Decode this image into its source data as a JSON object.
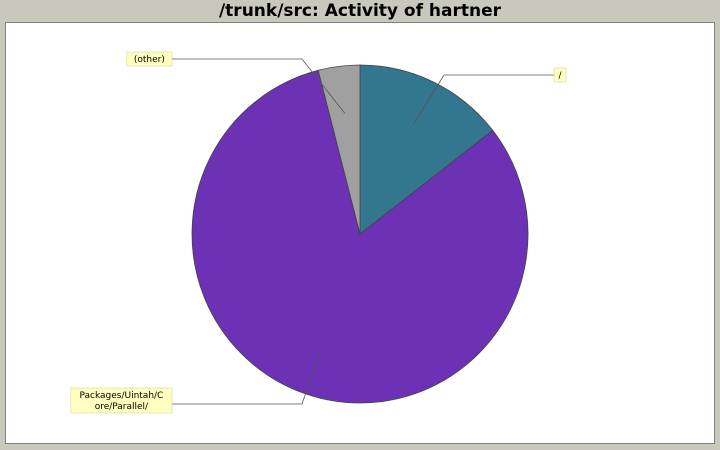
{
  "chart_data": {
    "type": "pie",
    "title": "/trunk/src: Activity of hartner",
    "slices": [
      {
        "label": "/",
        "value": 14.5,
        "color": "#33768f"
      },
      {
        "label": "Packages/Uintah/Core/Parallel/",
        "value": 81.5,
        "color": "#6c31b4"
      },
      {
        "label": "(other)",
        "value": 4.0,
        "color": "#a0a0a0"
      }
    ],
    "slice_label_lines": [
      [
        "/"
      ],
      [
        "Packages/Uintah/C",
        "ore/Parallel/"
      ],
      [
        "(other)"
      ]
    ],
    "start_angle_deg": 90,
    "direction": "clockwise",
    "legend": "none",
    "label_background": "#ffffc0"
  }
}
